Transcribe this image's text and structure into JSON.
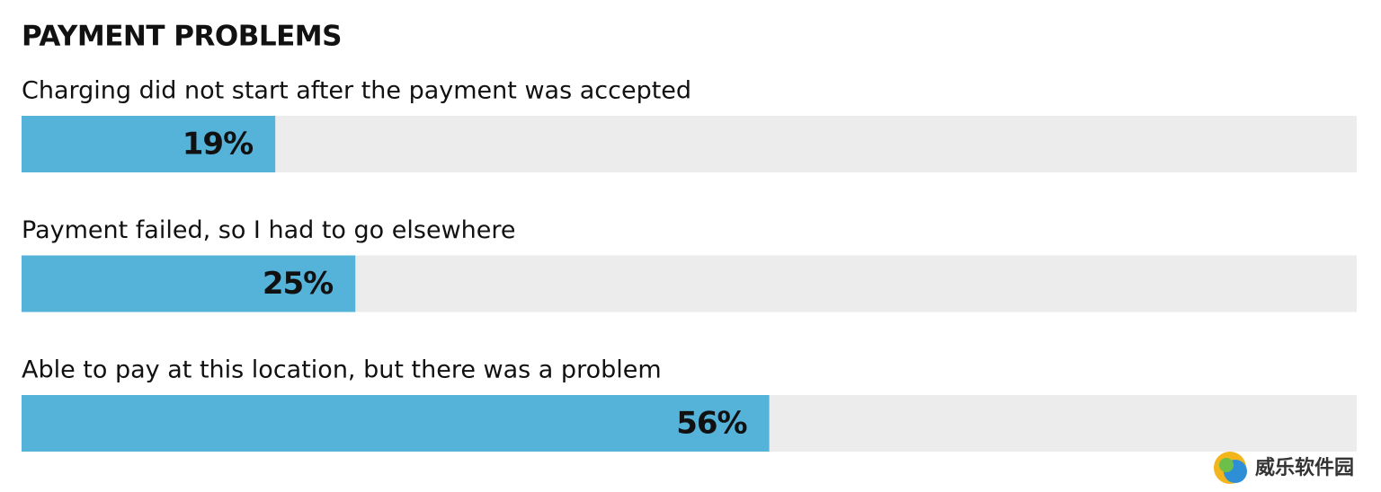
{
  "chart_data": {
    "type": "hbar",
    "title": "PAYMENT PROBLEMS",
    "categories": [
      "Charging did not start after the payment was accepted",
      "Payment failed, so I had to go elsewhere",
      "Able to pay at this location, but there was a problem"
    ],
    "values": [
      19,
      25,
      56
    ],
    "value_labels": [
      "19%",
      "25%",
      "56%"
    ],
    "color": "#55b3da",
    "track_color": "#ececec",
    "xlim": [
      0,
      100
    ]
  },
  "watermark": "威乐软件园"
}
